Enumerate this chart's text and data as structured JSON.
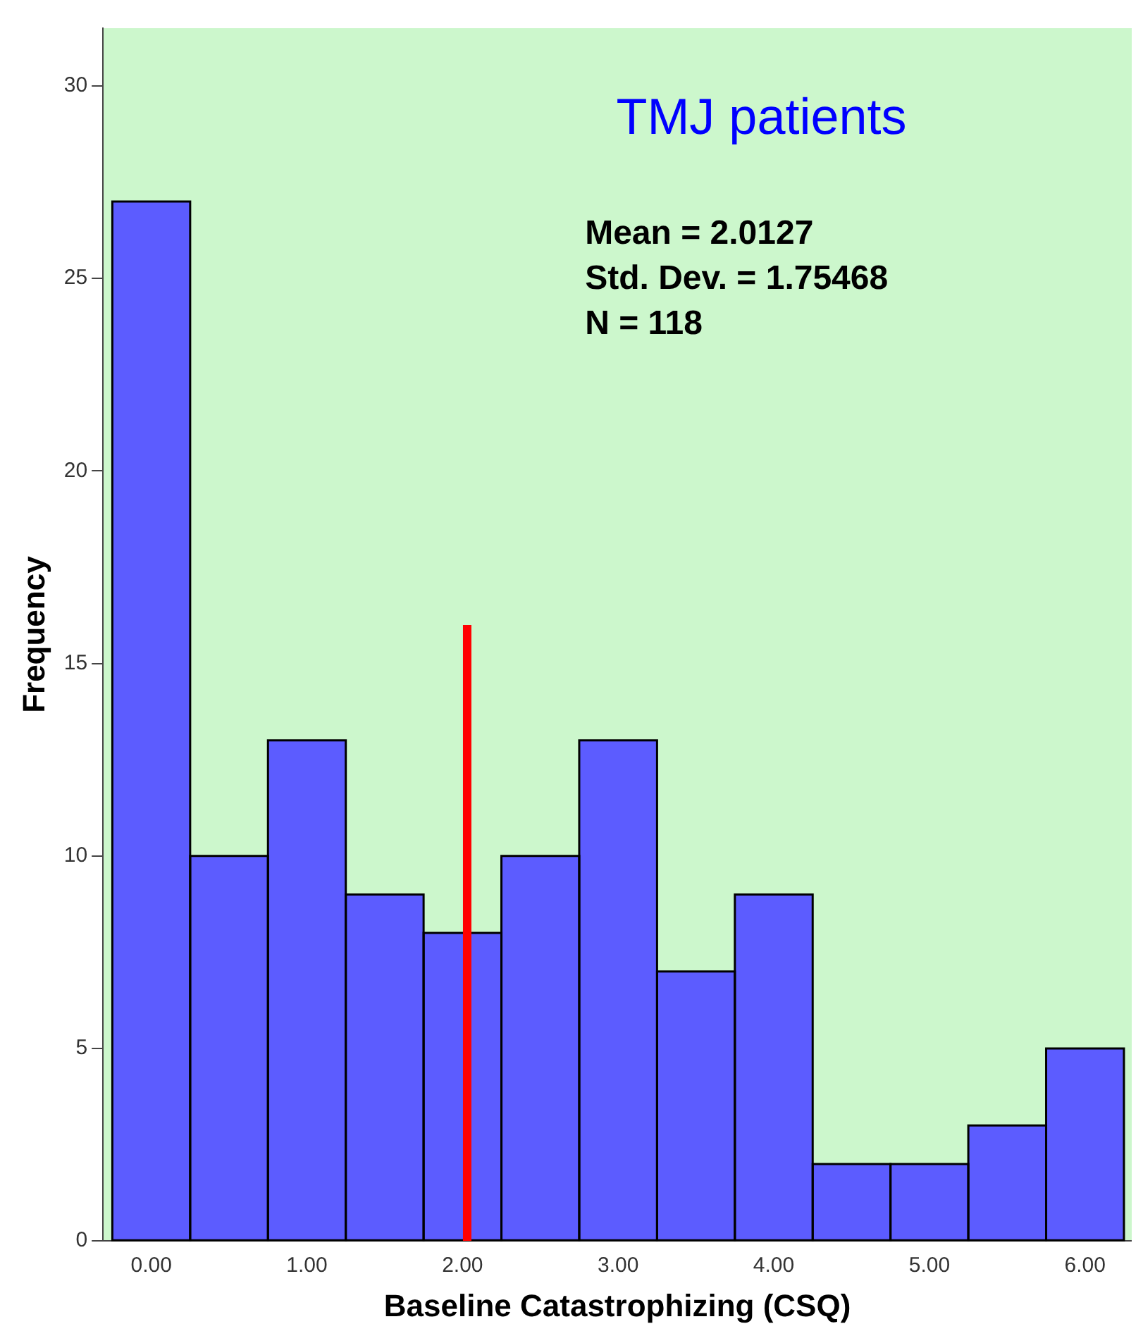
{
  "chart_data": {
    "type": "histogram",
    "title": "TMJ patients",
    "xlabel": "Baseline Catastrophizing (CSQ)",
    "ylabel": "Frequency",
    "bins": [
      -0.25,
      0.25,
      0.75,
      1.25,
      1.75,
      2.25,
      2.75,
      3.25,
      3.75,
      4.25,
      4.75,
      5.25,
      5.75,
      6.25
    ],
    "values": [
      27,
      10,
      13,
      9,
      8,
      10,
      13,
      7,
      9,
      2,
      2,
      3,
      5
    ],
    "color": "#5c5cff",
    "series": [
      {
        "type": "line",
        "x": [
          2.03,
          2.03
        ],
        "values": [
          0,
          16
        ],
        "color": "#ff0000"
      }
    ],
    "annotations": [
      "Mean = 2.0127",
      "Std. Dev. = 1.75468",
      "N = 118"
    ],
    "xlim": [
      -0.31,
      6.3
    ],
    "ylim": [
      0,
      31.5
    ],
    "xticks": [
      {
        "value": 0,
        "label": "0.00"
      },
      {
        "value": 1,
        "label": "1.00"
      },
      {
        "value": 2,
        "label": "2.00"
      },
      {
        "value": 3,
        "label": "3.00"
      },
      {
        "value": 4,
        "label": "4.00"
      },
      {
        "value": 5,
        "label": "5.00"
      },
      {
        "value": 6,
        "label": "6.00"
      }
    ],
    "yticks": [
      0,
      5,
      10,
      15,
      20,
      25,
      30
    ],
    "grid": false,
    "legend": false
  }
}
